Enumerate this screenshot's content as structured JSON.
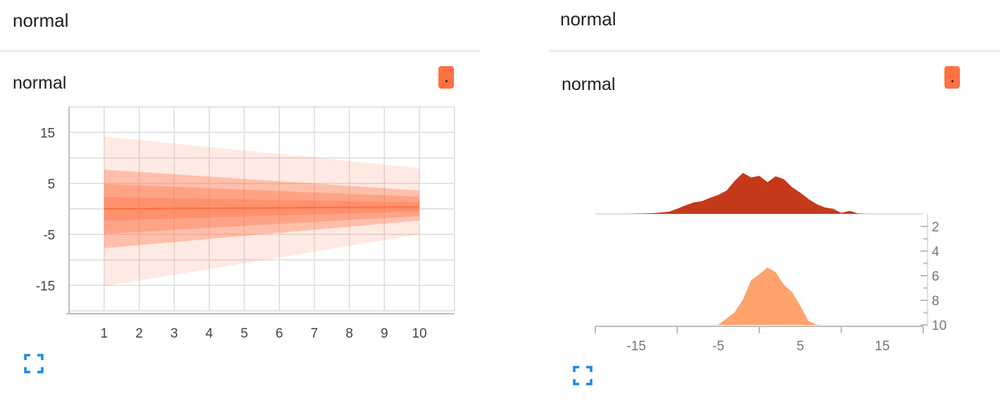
{
  "panels": [
    {
      "group_title": "normal",
      "card_title": "normal",
      "run_color": "#ff7043",
      "expand_icon": "fullscreen-icon"
    },
    {
      "group_title": "normal",
      "card_title": "normal",
      "run_color": "#ff7043",
      "expand_icon": "fullscreen-icon"
    }
  ],
  "chart_data": [
    {
      "type": "area",
      "subtype": "distribution-bands",
      "x": [
        1,
        10
      ],
      "xticks": [
        "1",
        "2",
        "3",
        "4",
        "5",
        "6",
        "7",
        "8",
        "9",
        "10"
      ],
      "yticks": [
        "15",
        "5",
        "-5",
        "-15"
      ],
      "ylim": [
        -20,
        20
      ],
      "grid": true,
      "color": "#ff7043",
      "bands": [
        {
          "lower": [
            -15.2,
            -5.0
          ],
          "upper": [
            14.2,
            8.0
          ],
          "opacity": 0.15
        },
        {
          "lower": [
            -7.7,
            -2.3
          ],
          "upper": [
            7.7,
            3.6
          ],
          "opacity": 0.35
        },
        {
          "lower": [
            -4.9,
            -1.4
          ],
          "upper": [
            4.9,
            2.4
          ],
          "opacity": 0.35
        },
        {
          "lower": [
            -2.3,
            -0.5
          ],
          "upper": [
            2.3,
            1.3
          ],
          "opacity": 0.35
        }
      ],
      "median": [
        0.0,
        0.4
      ]
    },
    {
      "type": "area",
      "subtype": "histogram-ridgeline",
      "xticks": [
        "-15",
        "-5",
        "5",
        "15"
      ],
      "xlim": [
        -20,
        20
      ],
      "steps": [
        "2",
        "4",
        "6",
        "8",
        "10"
      ],
      "series": [
        {
          "color": "#c4391a",
          "x": [
            -16,
            -15,
            -13,
            -11,
            -10,
            -9,
            -8,
            -7,
            -6,
            -5,
            -4,
            -3,
            -2,
            -1,
            0,
            1,
            2,
            3,
            4,
            5,
            6,
            7,
            8,
            9,
            10,
            11,
            12,
            13,
            14
          ],
          "y": [
            0,
            0.05,
            0.15,
            0.5,
            1.2,
            2.0,
            2.7,
            3.0,
            3.8,
            4.5,
            5.5,
            7.8,
            9.7,
            8.6,
            9.0,
            7.5,
            8.9,
            8.2,
            6.3,
            5.0,
            3.5,
            2.3,
            1.5,
            1.2,
            0.2,
            0.7,
            0.1,
            0.0,
            0
          ]
        },
        {
          "color": "#ffa26b",
          "x": [
            -6,
            -5,
            -4,
            -3,
            -2,
            -1,
            0,
            1,
            2,
            3,
            4,
            5,
            6,
            7,
            8
          ],
          "y": [
            0,
            0.1,
            1.5,
            3.0,
            6.0,
            10.6,
            12.0,
            13.6,
            12.5,
            9.5,
            7.8,
            4.5,
            0.9,
            0.1,
            0
          ]
        }
      ]
    }
  ]
}
